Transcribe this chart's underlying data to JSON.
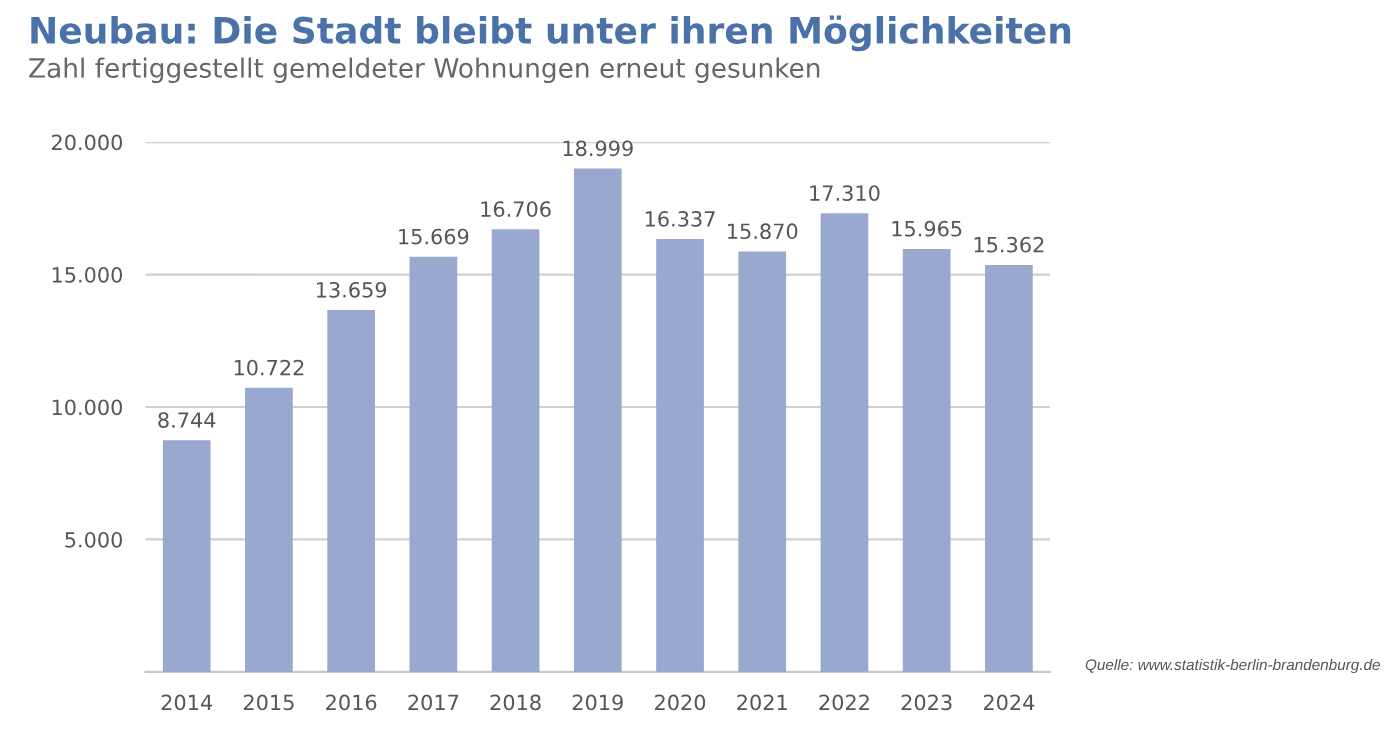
{
  "chart_data": {
    "type": "bar",
    "title": "Neubau: Die Stadt bleibt unter ihren Möglichkeiten",
    "subtitle": "Zahl fertiggestellt gemeldeter Wohnungen erneut gesunken",
    "categories": [
      "2014",
      "2015",
      "2016",
      "2017",
      "2018",
      "2019",
      "2020",
      "2021",
      "2022",
      "2023",
      "2024"
    ],
    "values": [
      8744,
      10722,
      13659,
      15669,
      16706,
      18999,
      16337,
      15870,
      17310,
      15965,
      15362
    ],
    "value_labels": [
      "8.744",
      "10.722",
      "13.659",
      "15.669",
      "16.706",
      "18.999",
      "16.337",
      "15.870",
      "17.310",
      "15.965",
      "15.362"
    ],
    "color": "#98a8cf",
    "ylim": [
      0,
      20000
    ],
    "yticks": [
      {
        "value": 5000,
        "label": "5.000"
      },
      {
        "value": 10000,
        "label": "10.000"
      },
      {
        "value": 15000,
        "label": "15.000"
      },
      {
        "value": 20000,
        "label": "20.000"
      }
    ],
    "grid": "y",
    "annotations": [
      "Quelle: www.statistik-berlin-brandenburg.de"
    ]
  }
}
